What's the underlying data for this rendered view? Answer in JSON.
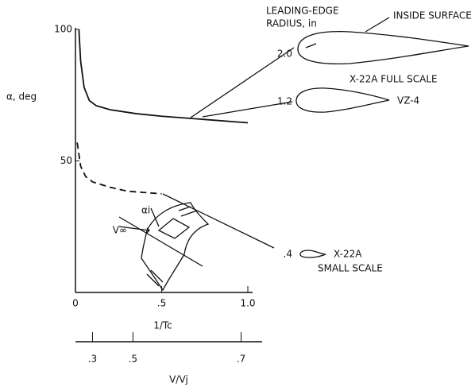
{
  "chart_data": {
    "type": "line",
    "y_label": "α, deg",
    "x_label": "1/Tc",
    "x2_label": "V/Vj",
    "xlim": [
      0,
      1.0
    ],
    "ylim": [
      0,
      100
    ],
    "xticks": [
      0,
      {
        "value": 0.5,
        "label": ".5"
      },
      {
        "value": 1.0,
        "label": "1.0"
      }
    ],
    "yticks": [
      50,
      100
    ],
    "x2ticks": [
      {
        "value": 0.3,
        "label": ".3"
      },
      {
        "value": 0.5,
        "label": ".5"
      },
      {
        "value": 0.7,
        "label": ".7"
      }
    ],
    "series": [
      {
        "color": "#111111",
        "dashed": false,
        "x": [
          0.02,
          0.03,
          0.05,
          0.08,
          0.12,
          0.2,
          0.35,
          0.5,
          0.7,
          1.0
        ],
        "values": [
          100,
          88,
          78,
          73,
          71,
          69.5,
          68,
          67,
          66,
          64.5
        ]
      },
      {
        "color": "#111111",
        "dashed": true,
        "x": [
          0.01,
          0.03,
          0.06,
          0.1,
          0.2,
          0.3,
          0.4,
          0.5
        ],
        "values": [
          57,
          48,
          44,
          42,
          40,
          38.5,
          38,
          37.5
        ]
      }
    ],
    "annotations": {
      "radius_header": "LEADING-EDGE",
      "radius_header2": "RADIUS, in",
      "inside_surface": "INSIDE SURFACE",
      "r1": "2.0",
      "r1_name": "X-22A FULL SCALE",
      "r2": "1.2",
      "r2_name": "VZ-4",
      "r3": ".4",
      "r3_name": "X-22A",
      "r3_name2": "SMALL SCALE",
      "v_inf": "V∞",
      "alpha_i": "αi"
    }
  }
}
